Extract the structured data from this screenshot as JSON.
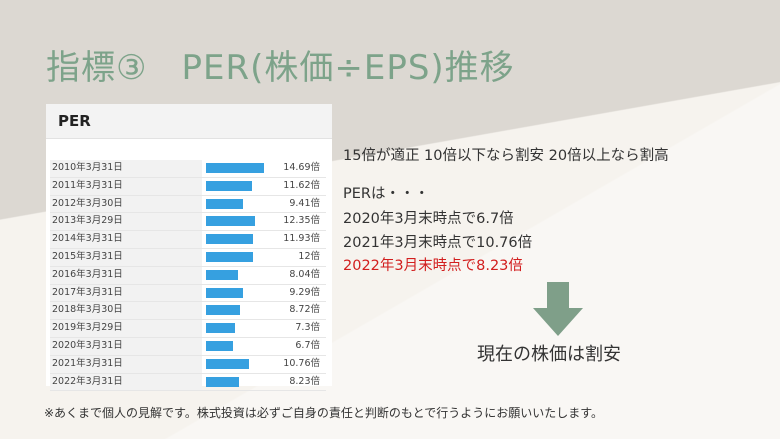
{
  "slide": {
    "title_prefix": "指標③",
    "title_main": "PER(株価÷EPS)推移"
  },
  "table": {
    "header": "PER",
    "bar_color": "#36a0e0",
    "rows": [
      {
        "date": "2010年3月31日",
        "value": "14.69倍",
        "num": 14.69
      },
      {
        "date": "2011年3月31日",
        "value": "11.62倍",
        "num": 11.62
      },
      {
        "date": "2012年3月30日",
        "value": "9.41倍",
        "num": 9.41
      },
      {
        "date": "2013年3月29日",
        "value": "12.35倍",
        "num": 12.35
      },
      {
        "date": "2014年3月31日",
        "value": "11.93倍",
        "num": 11.93
      },
      {
        "date": "2015年3月31日",
        "value": "12倍",
        "num": 12
      },
      {
        "date": "2016年3月31日",
        "value": "8.04倍",
        "num": 8.04
      },
      {
        "date": "2017年3月31日",
        "value": "9.29倍",
        "num": 9.29
      },
      {
        "date": "2018年3月30日",
        "value": "8.72倍",
        "num": 8.72
      },
      {
        "date": "2019年3月29日",
        "value": "7.3倍",
        "num": 7.3
      },
      {
        "date": "2020年3月31日",
        "value": "6.7倍",
        "num": 6.7
      },
      {
        "date": "2021年3月31日",
        "value": "10.76倍",
        "num": 10.76
      },
      {
        "date": "2022年3月31日",
        "value": "8.23倍",
        "num": 8.23
      }
    ]
  },
  "text": {
    "criteria": "15倍が適正 10倍以下なら割安 20倍以上なら割高",
    "per_intro": "PERは・・・",
    "line_2020": "2020年3月末時点で6.7倍",
    "line_2021": "2021年3月末時点で10.76倍",
    "line_2022": "2022年3月末時点で8.23倍",
    "conclusion": "現在の株価は割安",
    "disclaimer": "※あくまで個人の見解です。株式投資は必ずご自身の責任と判断のもとで行うようにお願いいたします。"
  },
  "colors": {
    "title": "#7da38a",
    "highlight": "#d21e1e",
    "arrow": "#7f9f89"
  },
  "icons": {
    "arrow": "down-arrow-icon"
  }
}
